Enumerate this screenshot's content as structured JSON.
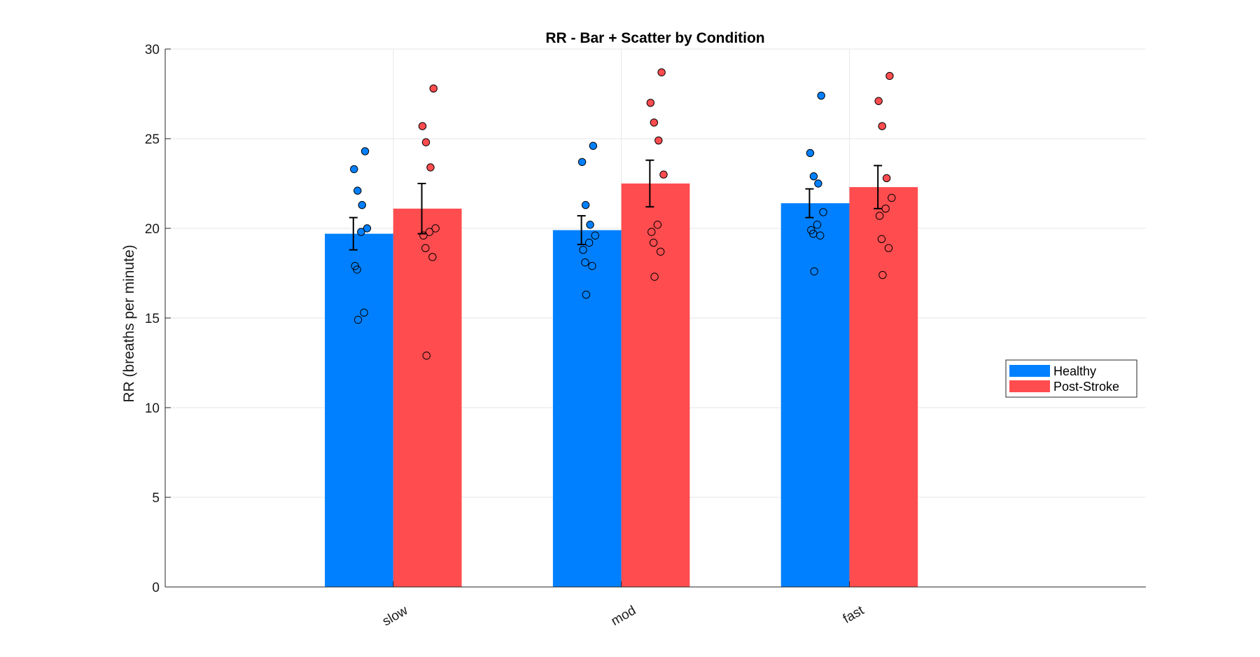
{
  "colors": {
    "healthy": "#0080ff",
    "post_stroke": "#ff4c4f",
    "axis": "#262626",
    "grid": "#e6e6e6",
    "error_bar": "#000000",
    "marker_edge": "#000000"
  },
  "chart_data": {
    "type": "bar",
    "title": "RR - Bar + Scatter by Condition",
    "xlabel": "",
    "ylabel": "RR (breaths per minute)",
    "ylim": [
      0,
      30
    ],
    "yticks": [
      0,
      5,
      10,
      15,
      20,
      25,
      30
    ],
    "xlim": [
      0,
      4.3
    ],
    "categories": [
      "slow",
      "mod",
      "fast"
    ],
    "grid": true,
    "legend_position": "east",
    "series": [
      {
        "name": "Healthy",
        "color": "#0080ff",
        "values": [
          19.7,
          19.9,
          21.4
        ],
        "sem": [
          0.9,
          0.8,
          0.8
        ],
        "points": [
          [
            24.3,
            23.3,
            22.1,
            21.3,
            20.0,
            19.8,
            17.9,
            17.7,
            15.3,
            14.9
          ],
          [
            24.6,
            23.7,
            21.3,
            20.2,
            19.6,
            19.2,
            18.8,
            18.1,
            17.9,
            16.3
          ],
          [
            27.4,
            24.2,
            22.9,
            22.5,
            20.9,
            20.2,
            19.9,
            19.7,
            19.6,
            17.6
          ]
        ]
      },
      {
        "name": "Post-Stroke",
        "color": "#ff4c4f",
        "values": [
          21.1,
          22.5,
          22.3
        ],
        "sem": [
          1.4,
          1.3,
          1.2
        ],
        "points": [
          [
            27.8,
            25.7,
            24.8,
            23.4,
            20.0,
            19.8,
            19.6,
            18.9,
            18.4,
            12.9
          ],
          [
            28.7,
            27.0,
            25.9,
            24.9,
            23.0,
            20.2,
            19.8,
            19.2,
            18.7,
            17.3
          ],
          [
            28.5,
            27.1,
            25.7,
            22.8,
            21.7,
            21.1,
            20.7,
            19.4,
            18.9,
            17.4
          ]
        ]
      }
    ]
  }
}
